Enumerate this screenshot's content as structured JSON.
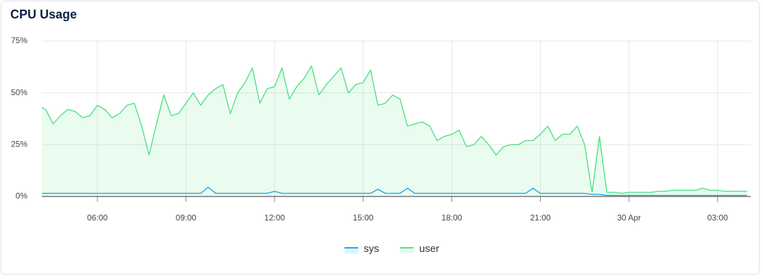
{
  "chart_data": {
    "type": "line",
    "title": "CPU Usage",
    "x": [
      4.12,
      4.25,
      4.5,
      4.75,
      5,
      5.25,
      5.5,
      5.75,
      6,
      6.25,
      6.5,
      6.75,
      7,
      7.25,
      7.5,
      7.75,
      8,
      8.25,
      8.5,
      8.75,
      9,
      9.25,
      9.5,
      9.75,
      10,
      10.25,
      10.5,
      10.75,
      11,
      11.25,
      11.5,
      11.75,
      12,
      12.25,
      12.5,
      12.75,
      13,
      13.25,
      13.5,
      13.75,
      14,
      14.25,
      14.5,
      14.75,
      15,
      15.25,
      15.5,
      15.75,
      16,
      16.25,
      16.5,
      16.75,
      17,
      17.25,
      17.5,
      17.75,
      18,
      18.25,
      18.5,
      18.75,
      19,
      19.25,
      19.5,
      19.75,
      20,
      20.25,
      20.5,
      20.75,
      21,
      21.25,
      21.5,
      21.75,
      22,
      22.25,
      22.5,
      22.75,
      23,
      23.25,
      23.5,
      23.75,
      24,
      24.25,
      24.5,
      24.75,
      25,
      25.25,
      25.5,
      25.75,
      26,
      26.25,
      26.5,
      26.75,
      27,
      27.25,
      27.5,
      27.75,
      28
    ],
    "series": [
      {
        "name": "sys",
        "color": "#1ba6e4",
        "fill": false,
        "values": [
          1.5,
          1.5,
          1.5,
          1.5,
          1.5,
          1.5,
          1.5,
          1.5,
          1.5,
          1.5,
          1.5,
          1.5,
          1.5,
          1.5,
          1.5,
          1.5,
          1.5,
          1.5,
          1.5,
          1.5,
          1.5,
          1.5,
          1.5,
          4.5,
          1.5,
          1.5,
          1.5,
          1.5,
          1.5,
          1.5,
          1.5,
          1.5,
          2.5,
          1.5,
          1.5,
          1.5,
          1.5,
          1.5,
          1.5,
          1.5,
          1.5,
          1.5,
          1.5,
          1.5,
          1.5,
          1.5,
          3.5,
          1.5,
          1.5,
          1.5,
          4,
          1.5,
          1.5,
          1.5,
          1.5,
          1.5,
          1.5,
          1.5,
          1.5,
          1.5,
          1.5,
          1.5,
          1.5,
          1.5,
          1.5,
          1.5,
          1.5,
          4,
          1.5,
          1.5,
          1.5,
          1.5,
          1.5,
          1.5,
          1.5,
          1,
          1,
          0.5,
          0.5,
          0.5,
          0.5,
          0.5,
          0.5,
          0.5,
          0.5,
          0.5,
          0.5,
          0.5,
          0.5,
          0.5,
          0.5,
          0.5,
          0.5,
          0.5,
          0.5,
          0.5,
          0.5
        ]
      },
      {
        "name": "user",
        "color": "#4fe083",
        "fill": true,
        "values": [
          43,
          42,
          35,
          39,
          42,
          41,
          38,
          39,
          44,
          42,
          38,
          40,
          44,
          45,
          34,
          20,
          35,
          49,
          39,
          40,
          45,
          50,
          44,
          49,
          52,
          54,
          40,
          50,
          55,
          62,
          45,
          52,
          53,
          62,
          47,
          53,
          57,
          63,
          49,
          54,
          58,
          62,
          50,
          54,
          55,
          61,
          44,
          45,
          49,
          47,
          34,
          35,
          36,
          34,
          27,
          29,
          30,
          32,
          24,
          25,
          29,
          25,
          20,
          24,
          25,
          25,
          27,
          27,
          30,
          34,
          27,
          30,
          30,
          34,
          25,
          2,
          29,
          2,
          2,
          1.5,
          2,
          2,
          2,
          2,
          2.5,
          2.5,
          3,
          3,
          3,
          3,
          4,
          3,
          3,
          2.5,
          2.5,
          2.5,
          2.5
        ]
      }
    ],
    "xlim": [
      4.12,
      28.12
    ],
    "xticks": [
      {
        "value": 6,
        "label": "06:00"
      },
      {
        "value": 9,
        "label": "09:00"
      },
      {
        "value": 12,
        "label": "12:00"
      },
      {
        "value": 15,
        "label": "15:00"
      },
      {
        "value": 18,
        "label": "18:00"
      },
      {
        "value": 21,
        "label": "21:00"
      },
      {
        "value": 24,
        "label": "30 Apr"
      },
      {
        "value": 27,
        "label": "03:00"
      }
    ],
    "ylim": [
      0,
      75
    ],
    "yticks": [
      {
        "value": 0,
        "label": "0%"
      },
      {
        "value": 25,
        "label": "25%"
      },
      {
        "value": 50,
        "label": "50%"
      },
      {
        "value": 75,
        "label": "75%"
      }
    ],
    "grid": true,
    "legend": "bottom"
  }
}
